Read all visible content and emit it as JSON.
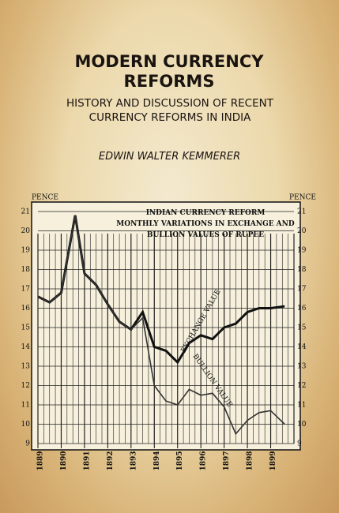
{
  "cover": {
    "title": "MODERN CURRENCY REFORMS",
    "subtitle": "HISTORY AND DISCUSSION OF RECENT CURRENCY REFORMS IN INDIA",
    "author": "EDWIN WALTER KEMMERER"
  },
  "chart_data": {
    "type": "line",
    "title": "INDIAN CURRENCY REFORM",
    "subtitle": "MONTHLY VARIATIONS IN EXCHANGE AND BULLION VALUES OF RUPEE",
    "ylabel": "PENCE",
    "y2label": "PENCE",
    "x": [
      1889,
      1889.5,
      1890,
      1890.6,
      1891,
      1891.5,
      1892,
      1892.5,
      1893,
      1893.5,
      1894,
      1894.5,
      1895,
      1895.5,
      1896,
      1896.5,
      1897,
      1897.5,
      1898,
      1898.5,
      1899,
      1899.6
    ],
    "series": [
      {
        "name": "EXCHANGE VALUE",
        "color": "#111111",
        "values": [
          16.6,
          16.3,
          16.8,
          20.8,
          17.8,
          17.2,
          16.2,
          15.3,
          14.9,
          15.8,
          14.0,
          13.8,
          13.2,
          14.2,
          14.6,
          14.4,
          15.0,
          15.2,
          15.8,
          16.0,
          16.0,
          16.1
        ]
      },
      {
        "name": "BULLION VALUE",
        "color": "#333333",
        "values": [
          16.6,
          16.3,
          16.8,
          20.8,
          17.8,
          17.2,
          16.2,
          15.3,
          14.9,
          15.5,
          12.0,
          11.2,
          11.0,
          11.8,
          11.5,
          11.6,
          10.9,
          9.5,
          10.2,
          10.6,
          10.7,
          10.0
        ]
      }
    ],
    "xlim": [
      1889,
      1900
    ],
    "xticks": [
      1889,
      1890,
      1891,
      1892,
      1893,
      1894,
      1895,
      1896,
      1897,
      1898,
      1899
    ],
    "ylim": [
      9,
      21
    ],
    "yticks": [
      9,
      10,
      11,
      12,
      13,
      14,
      15,
      16,
      17,
      18,
      19,
      20,
      21
    ],
    "grid": true
  }
}
